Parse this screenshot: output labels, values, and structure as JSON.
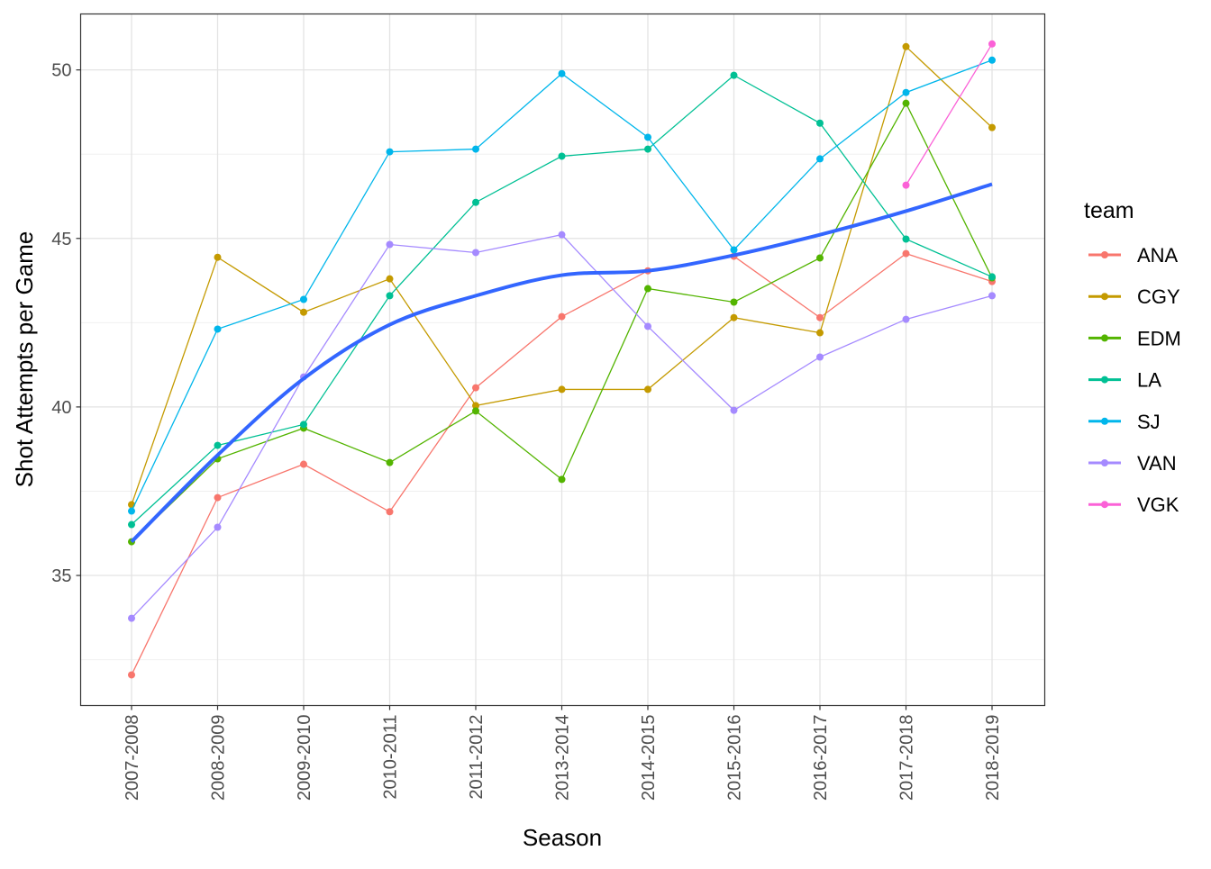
{
  "chart_data": {
    "type": "line",
    "title": "",
    "xlabel": "Season",
    "ylabel": "Shot Attempts per Game",
    "categories": [
      "2007-2008",
      "2008-2009",
      "2009-2010",
      "2010-2011",
      "2011-2012",
      "2013-2014",
      "2014-2015",
      "2015-2016",
      "2016-2017",
      "2017-2018",
      "2018-2019"
    ],
    "yticks": [
      35,
      40,
      45,
      50
    ],
    "ylim": [
      31.14,
      51.66
    ],
    "grid": true,
    "legend": {
      "title": "team",
      "placement": "right"
    },
    "series": [
      {
        "name": "ANA",
        "color": "#F8766D",
        "values": [
          32.05,
          37.31,
          38.3,
          36.89,
          40.57,
          42.68,
          44.04,
          44.47,
          42.65,
          44.55,
          43.72
        ]
      },
      {
        "name": "CGY",
        "color": "#C49A00",
        "values": [
          37.1,
          44.44,
          42.81,
          43.8,
          40.04,
          40.52,
          40.52,
          42.65,
          42.2,
          50.69,
          48.29
        ]
      },
      {
        "name": "EDM",
        "color": "#53B400",
        "values": [
          36.0,
          38.46,
          39.37,
          38.35,
          39.88,
          37.85,
          43.51,
          43.11,
          44.42,
          49.01,
          43.83
        ]
      },
      {
        "name": "LA",
        "color": "#00C094",
        "values": [
          36.51,
          38.86,
          39.48,
          43.3,
          46.07,
          47.44,
          47.65,
          49.84,
          48.42,
          44.98,
          43.86
        ]
      },
      {
        "name": "SJ",
        "color": "#00B6EB",
        "values": [
          36.91,
          42.31,
          43.19,
          47.57,
          47.65,
          49.89,
          48.0,
          44.66,
          47.36,
          49.33,
          50.29
        ]
      },
      {
        "name": "VAN",
        "color": "#A58AFF",
        "values": [
          33.73,
          36.43,
          40.89,
          44.82,
          44.58,
          45.11,
          42.39,
          39.9,
          41.48,
          42.6,
          43.3
        ]
      },
      {
        "name": "VGK",
        "color": "#FB61D7",
        "values": [
          null,
          null,
          null,
          null,
          null,
          null,
          null,
          null,
          null,
          46.58,
          50.77
        ]
      }
    ],
    "smooth": {
      "name": "trend",
      "color": "#3366FF",
      "values": [
        36.0,
        38.57,
        40.84,
        42.44,
        43.3,
        43.91,
        44.04,
        44.5,
        45.11,
        45.81,
        46.61
      ]
    }
  }
}
